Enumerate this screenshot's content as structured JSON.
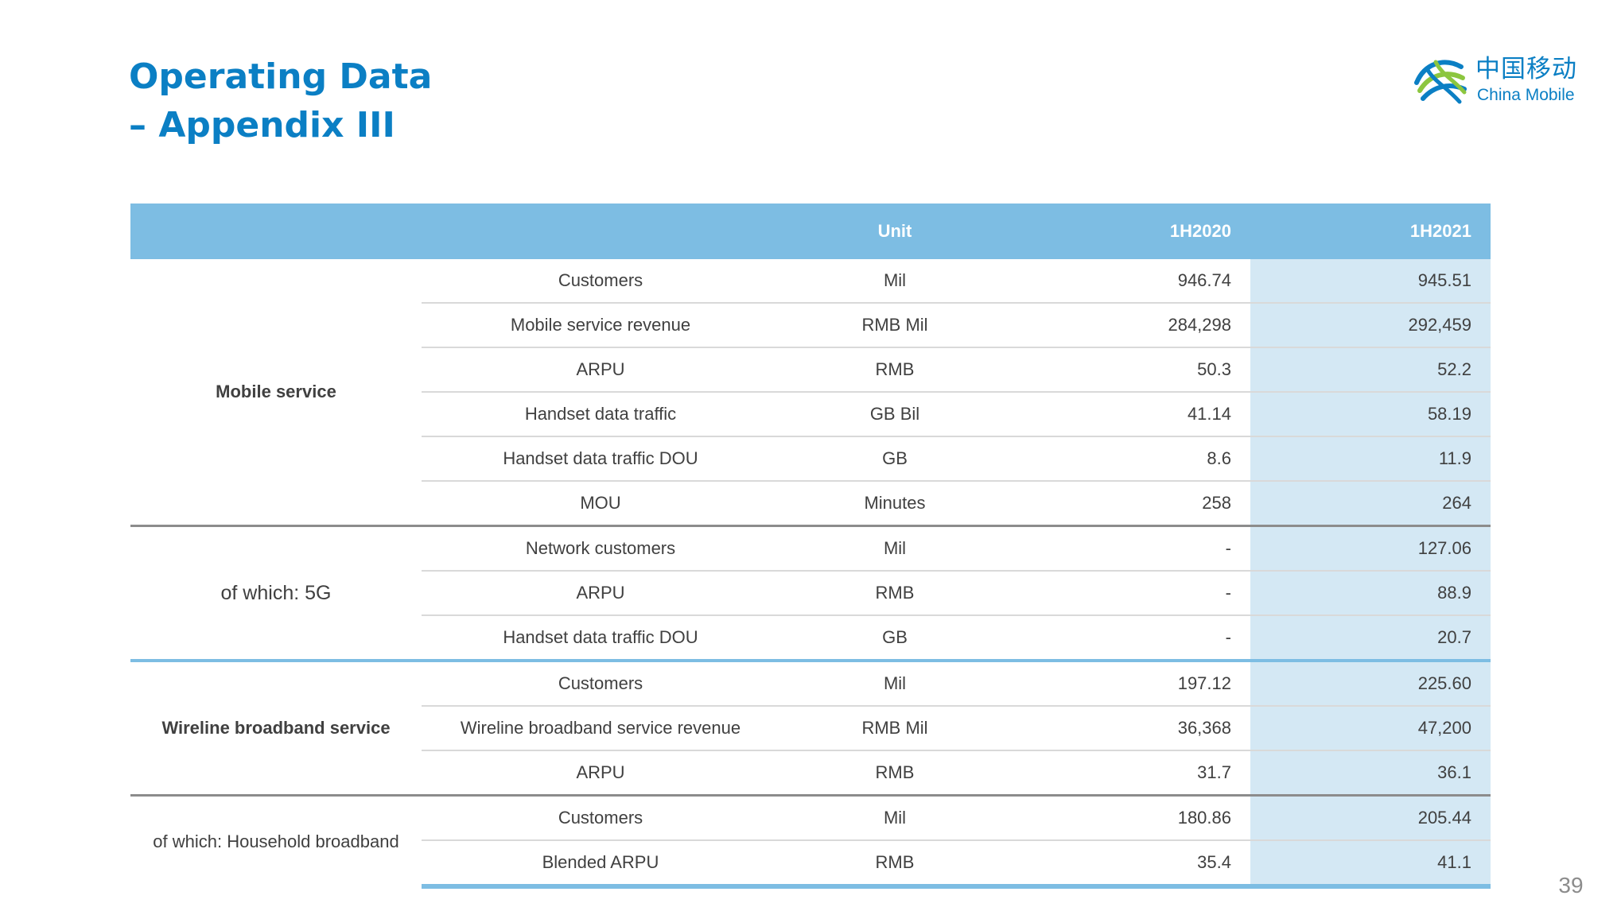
{
  "title": {
    "line1": "Operating Data",
    "line2": "– Appendix III"
  },
  "logo": {
    "cn": "中国移动",
    "en": "China Mobile"
  },
  "table": {
    "headers": {
      "unit": "Unit",
      "y2020": "1H2020",
      "y2021": "1H2021"
    },
    "groups": [
      {
        "label": "Mobile service",
        "rows": [
          {
            "metric": "Customers",
            "unit": "Mil",
            "y2020": "946.74",
            "y2021": "945.51"
          },
          {
            "metric": "Mobile service revenue",
            "unit": "RMB Mil",
            "y2020": "284,298",
            "y2021": "292,459"
          },
          {
            "metric": "ARPU",
            "unit": "RMB",
            "y2020": "50.3",
            "y2021": "52.2"
          },
          {
            "metric": "Handset data traffic",
            "unit": "GB Bil",
            "y2020": "41.14",
            "y2021": "58.19"
          },
          {
            "metric": "Handset data traffic DOU",
            "unit": "GB",
            "y2020": "8.6",
            "y2021": "11.9"
          },
          {
            "metric": "MOU",
            "unit": "Minutes",
            "y2020": "258",
            "y2021": "264"
          }
        ]
      },
      {
        "label": "of which: 5G",
        "rows": [
          {
            "metric": "Network customers",
            "unit": "Mil",
            "y2020": "-",
            "y2021": "127.06"
          },
          {
            "metric": "ARPU",
            "unit": "RMB",
            "y2020": "-",
            "y2021": "88.9"
          },
          {
            "metric": "Handset data traffic DOU",
            "unit": "GB",
            "y2020": "-",
            "y2021": "20.7"
          }
        ]
      },
      {
        "label": "Wireline broadband service",
        "rows": [
          {
            "metric": "Customers",
            "unit": "Mil",
            "y2020": "197.12",
            "y2021": "225.60"
          },
          {
            "metric": "Wireline broadband service revenue",
            "unit": "RMB Mil",
            "y2020": "36,368",
            "y2021": "47,200"
          },
          {
            "metric": "ARPU",
            "unit": "RMB",
            "y2020": "31.7",
            "y2021": "36.1"
          }
        ]
      },
      {
        "label": "of which: Household broadband",
        "rows": [
          {
            "metric": "Customers",
            "unit": "Mil",
            "y2020": "180.86",
            "y2021": "205.44"
          },
          {
            "metric": "Blended ARPU",
            "unit": "RMB",
            "y2020": "35.4",
            "y2021": "41.1"
          }
        ]
      }
    ]
  },
  "page_number": "39",
  "colors": {
    "title_blue": "#0b7fc4",
    "header_blue": "#7dbde3",
    "highlight_column": "#d4e8f4"
  }
}
